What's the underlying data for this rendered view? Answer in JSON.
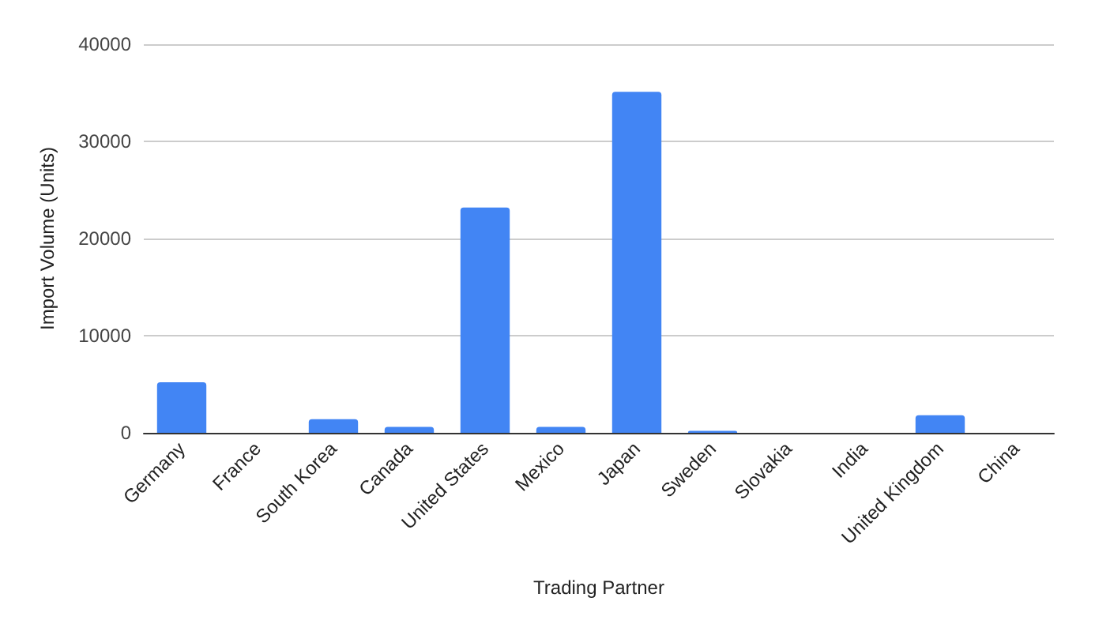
{
  "chart_data": {
    "type": "bar",
    "xlabel": "Trading Partner",
    "ylabel": "Import Volume (Units)",
    "categories": [
      "Germany",
      "France",
      "South Korea",
      "Canada",
      "United States",
      "Mexico",
      "Japan",
      "Sweden",
      "Slovakia",
      "India",
      "United Kingdom",
      "China"
    ],
    "values": [
      5200,
      0,
      1400,
      600,
      23200,
      600,
      35100,
      200,
      0,
      0,
      1800,
      0
    ],
    "color": "#4285f4",
    "ylim": [
      0,
      40000
    ],
    "yticks": [
      0,
      10000,
      20000,
      30000,
      40000
    ],
    "grid": "y"
  }
}
